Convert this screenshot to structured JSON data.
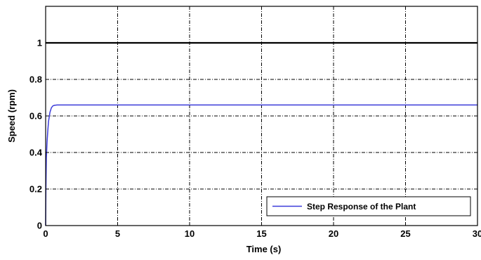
{
  "chart_data": {
    "type": "line",
    "title": "",
    "xlabel": "Time (s)",
    "ylabel": "Speed (rpm)",
    "xlim": [
      0,
      30
    ],
    "ylim": [
      0,
      1.2
    ],
    "x_ticks": [
      0,
      5,
      10,
      15,
      20,
      25,
      30
    ],
    "x_tick_labels": [
      "0",
      "5",
      "10",
      "15",
      "20",
      "25",
      "30"
    ],
    "y_ticks": [
      0,
      0.2,
      0.4,
      0.6,
      0.8,
      1
    ],
    "y_tick_labels": [
      "0",
      "0.2",
      "0.4",
      "0.6",
      "0.8",
      "1"
    ],
    "grid": true,
    "legend_position": "bottom-right",
    "reference_line": {
      "y": 1,
      "color": "#000000"
    },
    "series": [
      {
        "name": "Step Response of  the Plant",
        "color": "#3b3bd9",
        "x": [
          0,
          0.02,
          0.05,
          0.1,
          0.15,
          0.2,
          0.3,
          0.4,
          0.5,
          0.6,
          0.8,
          1,
          2,
          5,
          10,
          15,
          20,
          25,
          30
        ],
        "y": [
          0,
          0.2,
          0.37,
          0.46,
          0.52,
          0.57,
          0.62,
          0.645,
          0.655,
          0.658,
          0.66,
          0.66,
          0.66,
          0.66,
          0.66,
          0.66,
          0.66,
          0.66,
          0.66
        ]
      }
    ]
  }
}
